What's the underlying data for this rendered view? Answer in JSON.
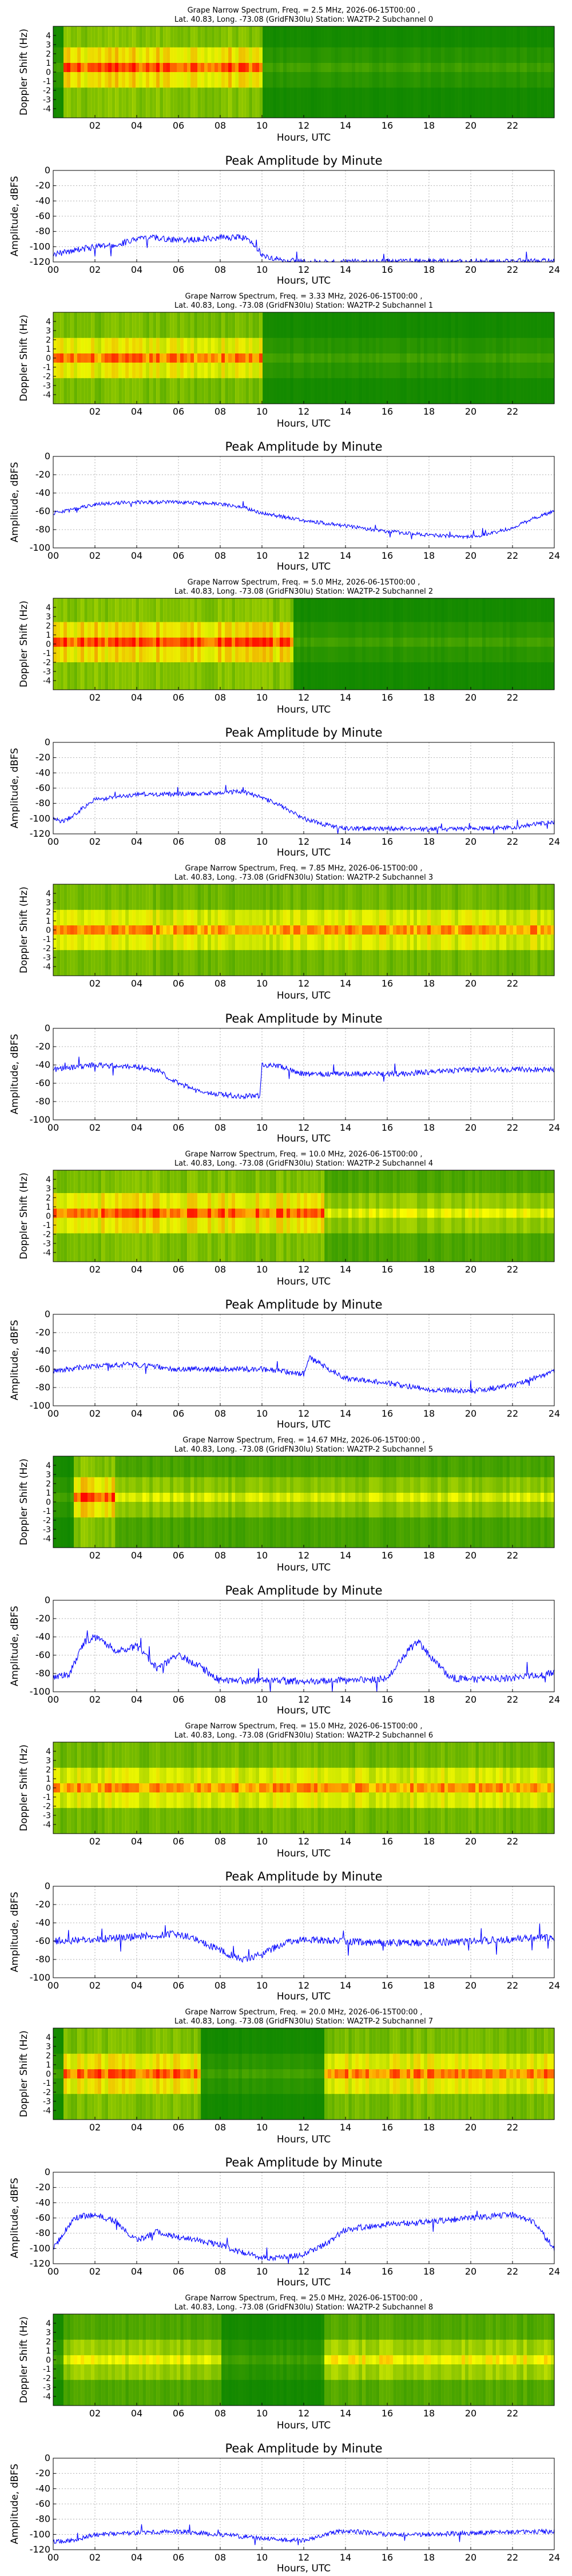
{
  "figure": {
    "common": {
      "spectrogram_ylabel": "Doppler Shift (Hz)",
      "amplitude_ylabel": "Amplitude, dBFS",
      "xlabel": "Hours, UTC",
      "amplitude_title": "Peak Amplitude by Minute",
      "spectrogram_xticks": [
        "02",
        "04",
        "06",
        "08",
        "10",
        "12",
        "14",
        "16",
        "18",
        "20",
        "22"
      ],
      "spectrogram_yticks": [
        "4",
        "3",
        "2",
        "1",
        "0",
        "-1",
        "-2",
        "-3",
        "-4"
      ],
      "amplitude_xticks": [
        "00",
        "02",
        "04",
        "06",
        "08",
        "10",
        "12",
        "14",
        "16",
        "18",
        "20",
        "22",
        "24"
      ]
    },
    "colors": {
      "trace": "#0000ff",
      "spec_dark": "#008000",
      "spec_mid": "#ffff00",
      "spec_hot": "#ff0000"
    }
  },
  "chart_data": [
    {
      "type": "heatmap",
      "title_line1": "Grape Narrow Spectrum, Freq. = 2.5 MHz, 2026-06-15T00:00 ,",
      "title_line2": "Lat.  40.83, Long. -73.08 (GridFN30lu) Station: WA2TP-2 Subchannel 0",
      "xlabel": "Hours, UTC",
      "ylabel": "Doppler Shift (Hz)",
      "xlim": [
        0,
        24
      ],
      "ylim": [
        -5,
        5
      ],
      "activity_segments": [
        [
          0.5,
          10.0,
          0.95
        ]
      ],
      "center_doppler_hz": 0.5
    },
    {
      "type": "line",
      "title": "Peak Amplitude by Minute",
      "xlabel": "Hours, UTC",
      "ylabel": "Amplitude, dBFS",
      "xlim": [
        0,
        24
      ],
      "ylim": [
        -120,
        0
      ],
      "yticks": [
        0,
        -20,
        -40,
        -60,
        -80,
        -100,
        -120
      ],
      "grid": true,
      "x": [
        0,
        1,
        2,
        3,
        4,
        5,
        6,
        7,
        8,
        9,
        9.5,
        10,
        11,
        12,
        13,
        14,
        16,
        18,
        20,
        22,
        24
      ],
      "y": [
        -110,
        -105,
        -100,
        -98,
        -90,
        -88,
        -92,
        -90,
        -88,
        -88,
        -92,
        -110,
        -118,
        -120,
        -120,
        -120,
        -120,
        -119,
        -120,
        -119,
        -119
      ],
      "noise": 4
    },
    {
      "type": "heatmap",
      "title_line1": "Grape Narrow Spectrum, Freq. = 3.33 MHz, 2026-06-15T00:00 ,",
      "title_line2": "Lat.  40.83, Long. -73.08 (GridFN30lu) Station: WA2TP-2 Subchannel 1",
      "xlabel": "Hours, UTC",
      "ylabel": "Doppler Shift (Hz)",
      "xlim": [
        0,
        24
      ],
      "ylim": [
        -5,
        5
      ],
      "activity_segments": [
        [
          0.0,
          10.0,
          0.85
        ]
      ],
      "center_doppler_hz": 0.0
    },
    {
      "type": "line",
      "title": "Peak Amplitude by Minute",
      "xlabel": "Hours, UTC",
      "ylabel": "Amplitude, dBFS",
      "xlim": [
        0,
        24
      ],
      "ylim": [
        -100,
        0
      ],
      "yticks": [
        0,
        -20,
        -40,
        -60,
        -80,
        -100
      ],
      "grid": true,
      "x": [
        0,
        1,
        2,
        4,
        6,
        8,
        9,
        10,
        12,
        14,
        16,
        18,
        20,
        21,
        22,
        23,
        24
      ],
      "y": [
        -62,
        -58,
        -52,
        -50,
        -50,
        -52,
        -55,
        -62,
        -70,
        -76,
        -82,
        -86,
        -88,
        -84,
        -78,
        -68,
        -60
      ],
      "noise": 2
    },
    {
      "type": "heatmap",
      "title_line1": "Grape Narrow Spectrum, Freq. = 5.0 MHz, 2026-06-15T00:00 ,",
      "title_line2": "Lat.  40.83, Long. -73.08 (GridFN30lu) Station: WA2TP-2 Subchannel 2",
      "xlabel": "Hours, UTC",
      "ylabel": "Doppler Shift (Hz)",
      "xlim": [
        0,
        24
      ],
      "ylim": [
        -5,
        5
      ],
      "activity_segments": [
        [
          0.0,
          11.5,
          0.95
        ]
      ],
      "center_doppler_hz": 0.2
    },
    {
      "type": "line",
      "title": "Peak Amplitude by Minute",
      "xlabel": "Hours, UTC",
      "ylabel": "Amplitude, dBFS",
      "xlim": [
        0,
        24
      ],
      "ylim": [
        -120,
        0
      ],
      "yticks": [
        0,
        -20,
        -40,
        -60,
        -80,
        -100,
        -120
      ],
      "grid": true,
      "x": [
        0,
        0.5,
        1,
        2,
        4,
        6,
        8,
        9,
        10,
        11,
        12,
        13,
        14,
        16,
        18,
        20,
        22,
        23,
        24
      ],
      "y": [
        -100,
        -104,
        -95,
        -75,
        -68,
        -68,
        -66,
        -64,
        -72,
        -85,
        -100,
        -108,
        -113,
        -113,
        -114,
        -113,
        -112,
        -108,
        -104
      ],
      "noise": 3
    },
    {
      "type": "heatmap",
      "title_line1": "Grape Narrow Spectrum, Freq. = 7.85 MHz, 2026-06-15T00:00 ,",
      "title_line2": "Lat.  40.83, Long. -73.08 (GridFN30lu) Station: WA2TP-2 Subchannel 3",
      "xlabel": "Hours, UTC",
      "ylabel": "Doppler Shift (Hz)",
      "xlim": [
        0,
        24
      ],
      "ylim": [
        -5,
        5
      ],
      "activity_segments": [
        [
          0.0,
          24.0,
          0.8
        ]
      ],
      "center_doppler_hz": 0.0
    },
    {
      "type": "line",
      "title": "Peak Amplitude by Minute",
      "xlabel": "Hours, UTC",
      "ylabel": "Amplitude, dBFS",
      "xlim": [
        0,
        24
      ],
      "ylim": [
        -100,
        0
      ],
      "yticks": [
        0,
        -20,
        -40,
        -60,
        -80,
        -100
      ],
      "grid": true,
      "x": [
        0,
        2,
        4,
        5,
        6,
        7,
        8,
        9,
        9.9,
        10,
        11,
        12,
        14,
        16,
        18,
        20,
        22,
        24
      ],
      "y": [
        -45,
        -40,
        -42,
        -46,
        -60,
        -70,
        -72,
        -74,
        -74,
        -40,
        -42,
        -50,
        -50,
        -50,
        -48,
        -45,
        -45,
        -45
      ],
      "noise": 3
    },
    {
      "type": "heatmap",
      "title_line1": "Grape Narrow Spectrum, Freq. = 10.0 MHz, 2026-06-15T00:00 ,",
      "title_line2": "Lat.  40.83, Long. -73.08 (GridFN30lu) Station: WA2TP-2 Subchannel 4",
      "xlabel": "Hours, UTC",
      "ylabel": "Doppler Shift (Hz)",
      "xlim": [
        0,
        24
      ],
      "ylim": [
        -5,
        5
      ],
      "activity_segments": [
        [
          0.0,
          13.0,
          0.9
        ],
        [
          13.0,
          24.0,
          0.55
        ]
      ],
      "center_doppler_hz": 0.3
    },
    {
      "type": "line",
      "title": "Peak Amplitude by Minute",
      "xlabel": "Hours, UTC",
      "ylabel": "Amplitude, dBFS",
      "xlim": [
        0,
        24
      ],
      "ylim": [
        -100,
        0
      ],
      "yticks": [
        0,
        -20,
        -40,
        -60,
        -80,
        -100
      ],
      "grid": true,
      "x": [
        0,
        2,
        4,
        6,
        8,
        10,
        12,
        12.3,
        14,
        16,
        18,
        20,
        22,
        24
      ],
      "y": [
        -62,
        -56,
        -55,
        -60,
        -60,
        -60,
        -65,
        -48,
        -70,
        -75,
        -82,
        -84,
        -78,
        -62
      ],
      "noise": 3
    },
    {
      "type": "heatmap",
      "title_line1": "Grape Narrow Spectrum, Freq. = 14.67 MHz, 2026-06-15T00:00 ,",
      "title_line2": "Lat.  40.83, Long. -73.08 (GridFN30lu) Station: WA2TP-2 Subchannel 5",
      "xlabel": "Hours, UTC",
      "ylabel": "Doppler Shift (Hz)",
      "xlim": [
        0,
        24
      ],
      "ylim": [
        -5,
        5
      ],
      "activity_segments": [
        [
          1.0,
          3.0,
          0.95
        ],
        [
          3.0,
          24.0,
          0.5
        ]
      ],
      "center_doppler_hz": 0.5
    },
    {
      "type": "line",
      "title": "Peak Amplitude by Minute",
      "xlabel": "Hours, UTC",
      "ylabel": "Amplitude, dBFS",
      "xlim": [
        0,
        24
      ],
      "ylim": [
        -100,
        0
      ],
      "yticks": [
        0,
        -20,
        -40,
        -60,
        -80,
        -100
      ],
      "grid": true,
      "x": [
        0,
        0.8,
        1.5,
        2,
        3,
        4,
        5,
        6,
        7,
        8,
        10,
        12,
        14,
        16,
        17,
        17.5,
        18,
        19,
        20,
        22,
        24
      ],
      "y": [
        -85,
        -80,
        -45,
        -40,
        -55,
        -50,
        -75,
        -60,
        -72,
        -88,
        -88,
        -88,
        -88,
        -86,
        -55,
        -45,
        -60,
        -85,
        -86,
        -85,
        -80
      ],
      "noise": 4
    },
    {
      "type": "heatmap",
      "title_line1": "Grape Narrow Spectrum, Freq. = 15.0 MHz, 2026-06-15T00:00 ,",
      "title_line2": "Lat.  40.83, Long. -73.08 (GridFN30lu) Station: WA2TP-2 Subchannel 6",
      "xlabel": "Hours, UTC",
      "ylabel": "Doppler Shift (Hz)",
      "xlim": [
        0,
        24
      ],
      "ylim": [
        -5,
        5
      ],
      "activity_segments": [
        [
          0.0,
          24.0,
          0.8
        ]
      ],
      "center_doppler_hz": 0.0
    },
    {
      "type": "line",
      "title": "Peak Amplitude by Minute",
      "xlabel": "Hours, UTC",
      "ylabel": "Amplitude, dBFS",
      "xlim": [
        0,
        24
      ],
      "ylim": [
        -100,
        0
      ],
      "yticks": [
        0,
        -20,
        -40,
        -60,
        -80,
        -100
      ],
      "grid": true,
      "x": [
        0,
        2,
        4,
        6,
        7,
        8,
        9,
        10,
        11,
        12,
        14,
        16,
        18,
        20,
        22,
        24
      ],
      "y": [
        -60,
        -58,
        -55,
        -52,
        -60,
        -70,
        -80,
        -75,
        -62,
        -58,
        -60,
        -62,
        -62,
        -60,
        -58,
        -56
      ],
      "noise": 4
    },
    {
      "type": "heatmap",
      "title_line1": "Grape Narrow Spectrum, Freq. = 20.0 MHz, 2026-06-15T00:00 ,",
      "title_line2": "Lat.  40.83, Long. -73.08 (GridFN30lu) Station: WA2TP-2 Subchannel 7",
      "xlabel": "Hours, UTC",
      "ylabel": "Doppler Shift (Hz)",
      "xlim": [
        0,
        24
      ],
      "ylim": [
        -5,
        5
      ],
      "activity_segments": [
        [
          0.5,
          7.0,
          0.9
        ],
        [
          13.0,
          24.0,
          0.85
        ]
      ],
      "center_doppler_hz": 0.0
    },
    {
      "type": "line",
      "title": "Peak Amplitude by Minute",
      "xlabel": "Hours, UTC",
      "ylabel": "Amplitude, dBFS",
      "xlim": [
        0,
        24
      ],
      "ylim": [
        -120,
        0
      ],
      "yticks": [
        0,
        -20,
        -40,
        -60,
        -80,
        -100,
        -120
      ],
      "grid": true,
      "x": [
        0,
        1,
        2,
        3,
        4,
        5,
        6,
        8,
        9,
        10,
        11,
        12,
        13,
        14,
        16,
        18,
        20,
        22,
        23,
        24
      ],
      "y": [
        -100,
        -60,
        -55,
        -65,
        -90,
        -78,
        -85,
        -95,
        -105,
        -112,
        -112,
        -108,
        -95,
        -75,
        -68,
        -65,
        -60,
        -55,
        -65,
        -100
      ],
      "noise": 4
    },
    {
      "type": "heatmap",
      "title_line1": "Grape Narrow Spectrum, Freq. = 25.0 MHz, 2026-06-15T00:00 ,",
      "title_line2": "Lat.  40.83, Long. -73.08 (GridFN30lu) Station: WA2TP-2 Subchannel 8",
      "xlabel": "Hours, UTC",
      "ylabel": "Doppler Shift (Hz)",
      "xlim": [
        0,
        24
      ],
      "ylim": [
        -5,
        5
      ],
      "activity_segments": [
        [
          0.5,
          8.0,
          0.55
        ],
        [
          13.0,
          24.0,
          0.6
        ]
      ],
      "center_doppler_hz": 0.0
    },
    {
      "type": "line",
      "title": "Peak Amplitude by Minute",
      "xlabel": "Hours, UTC",
      "ylabel": "Amplitude, dBFS",
      "xlim": [
        0,
        24
      ],
      "ylim": [
        -120,
        0
      ],
      "yticks": [
        0,
        -20,
        -40,
        -60,
        -80,
        -100,
        -120
      ],
      "grid": true,
      "x": [
        0,
        1,
        2,
        4,
        6,
        8,
        10,
        12,
        13,
        14,
        16,
        18,
        20,
        22,
        24
      ],
      "y": [
        -110,
        -108,
        -100,
        -98,
        -96,
        -100,
        -105,
        -108,
        -100,
        -95,
        -100,
        -100,
        -98,
        -97,
        -96
      ],
      "noise": 3
    }
  ]
}
